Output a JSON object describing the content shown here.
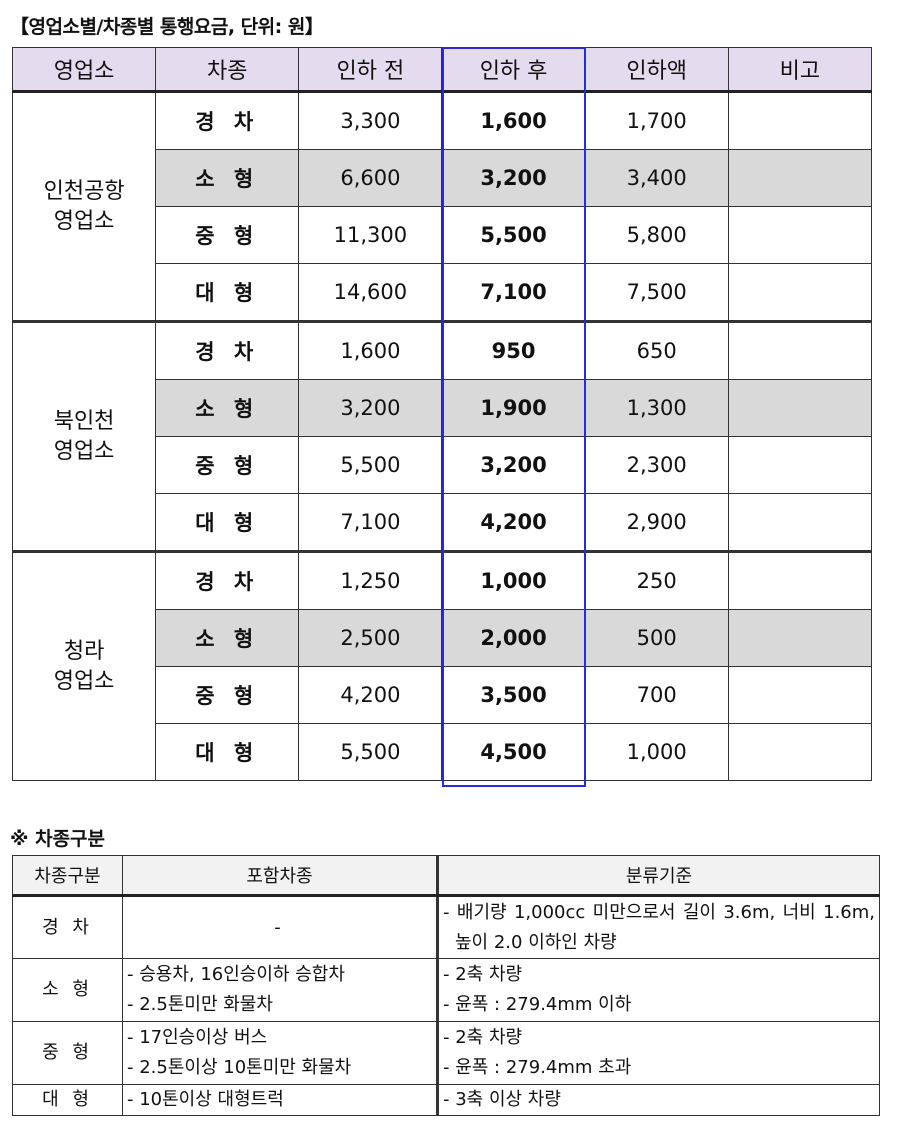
{
  "title": "【영업소별/차종별 통행요금, 단위: 원】",
  "fare_table": {
    "headers": [
      "영업소",
      "차종",
      "인하 전",
      "인하 후",
      "인하액",
      "비고"
    ],
    "offices": [
      {
        "name": [
          "인천공항",
          "영업소"
        ],
        "rows": [
          {
            "type": "경 차",
            "before": "3,300",
            "after": "1,600",
            "diff": "1,700",
            "note": ""
          },
          {
            "type": "소 형",
            "before": "6,600",
            "after": "3,200",
            "diff": "3,400",
            "note": ""
          },
          {
            "type": "중 형",
            "before": "11,300",
            "after": "5,500",
            "diff": "5,800",
            "note": ""
          },
          {
            "type": "대 형",
            "before": "14,600",
            "after": "7,100",
            "diff": "7,500",
            "note": ""
          }
        ]
      },
      {
        "name": [
          "북인천",
          "영업소"
        ],
        "rows": [
          {
            "type": "경 차",
            "before": "1,600",
            "after": "950",
            "diff": "650",
            "note": ""
          },
          {
            "type": "소 형",
            "before": "3,200",
            "after": "1,900",
            "diff": "1,300",
            "note": ""
          },
          {
            "type": "중 형",
            "before": "5,500",
            "after": "3,200",
            "diff": "2,300",
            "note": ""
          },
          {
            "type": "대 형",
            "before": "7,100",
            "after": "4,200",
            "diff": "2,900",
            "note": ""
          }
        ]
      },
      {
        "name": [
          "청라",
          "영업소"
        ],
        "rows": [
          {
            "type": "경 차",
            "before": "1,250",
            "after": "1,000",
            "diff": "250",
            "note": ""
          },
          {
            "type": "소 형",
            "before": "2,500",
            "after": "2,000",
            "diff": "500",
            "note": ""
          },
          {
            "type": "중 형",
            "before": "4,200",
            "after": "3,500",
            "diff": "700",
            "note": ""
          },
          {
            "type": "대 형",
            "before": "5,500",
            "after": "4,500",
            "diff": "1,000",
            "note": ""
          }
        ]
      }
    ],
    "colors": {
      "header": "#e4dcee",
      "shade": "#d9d9d9",
      "highlight": "#2a2ad8"
    }
  },
  "note_title": "※ 차종구분",
  "class_table": {
    "headers": [
      "차종구분",
      "포함차종",
      "분류기준"
    ],
    "rows": [
      {
        "type": "경 차",
        "includes": [
          "-"
        ],
        "criteria": [
          "- 배기량 1,000cc 미만으로서 길이 3.6m, 너비 1.6m, 높이 2.0 이하인 차량"
        ]
      },
      {
        "type": "소 형",
        "includes": [
          "- 승용차, 16인승이하 승합차",
          "- 2.5톤미만 화물차"
        ],
        "criteria": [
          "- 2축 차량",
          "- 윤폭 : 279.4mm 이하"
        ]
      },
      {
        "type": "중 형",
        "includes": [
          "- 17인승이상 버스",
          "- 2.5톤이상 10톤미만 화물차"
        ],
        "criteria": [
          "- 2축 차량",
          "- 윤폭 : 279.4mm 초과"
        ]
      },
      {
        "type": "대 형",
        "includes": [
          "- 10톤이상 대형트럭"
        ],
        "criteria": [
          "- 3축 이상 차량"
        ]
      }
    ]
  }
}
